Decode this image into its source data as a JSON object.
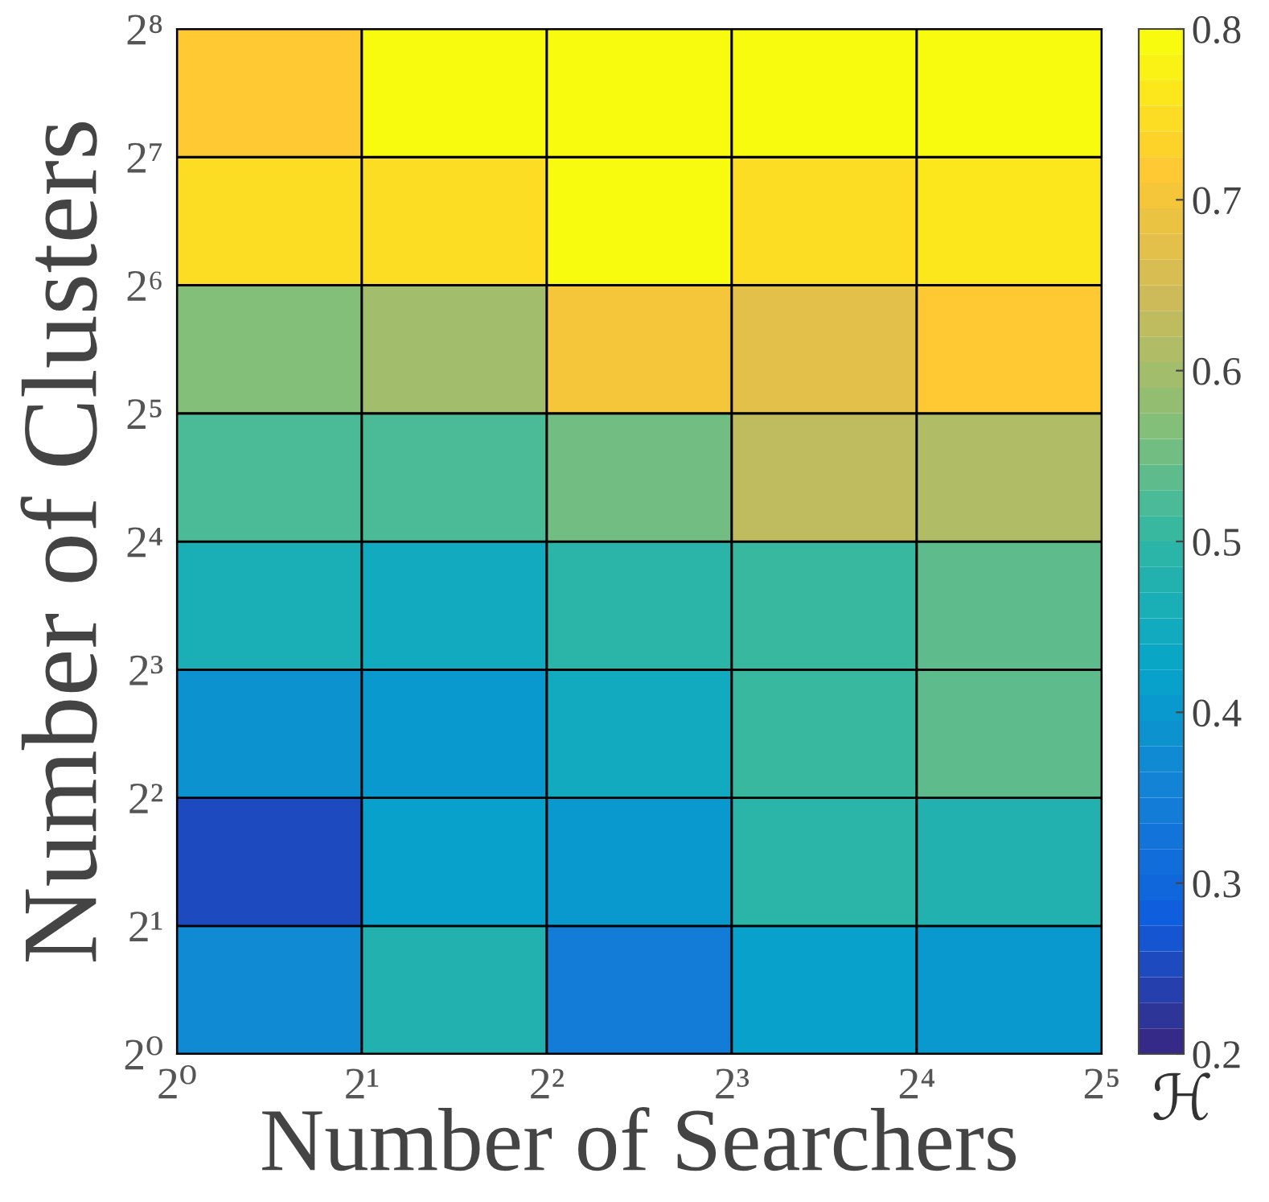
{
  "chart_data": {
    "type": "heatmap",
    "xlabel": "Number of Searchers",
    "ylabel": "Number of Clusters",
    "clabel": "ℋ",
    "x": [
      1.414,
      2.828,
      5.657,
      11.31,
      22.63
    ],
    "y": [
      1.414,
      2.828,
      5.657,
      11.31,
      22.63,
      45.25,
      90.51,
      181.0
    ],
    "log": "xy",
    "xlim": [
      1,
      32
    ],
    "ylim": [
      1,
      256
    ],
    "xticks": [
      {
        "value": 1,
        "label": "2⁰"
      },
      {
        "value": 2,
        "label": "2¹"
      },
      {
        "value": 4,
        "label": "2²"
      },
      {
        "value": 8,
        "label": "2³"
      },
      {
        "value": 16,
        "label": "2⁴"
      },
      {
        "value": 32,
        "label": "2⁵"
      }
    ],
    "yticks": [
      {
        "value": 1,
        "label": "2⁰"
      },
      {
        "value": 2,
        "label": "2¹"
      },
      {
        "value": 4,
        "label": "2²"
      },
      {
        "value": 8,
        "label": "2³"
      },
      {
        "value": 16,
        "label": "2⁴"
      },
      {
        "value": 32,
        "label": "2⁵"
      },
      {
        "value": 64,
        "label": "2⁶"
      },
      {
        "value": 128,
        "label": "2⁷"
      },
      {
        "value": 256,
        "label": "2⁸"
      }
    ],
    "cells": [
      [
        0.38,
        0.48,
        0.34,
        0.42,
        0.41
      ],
      [
        0.25,
        0.42,
        0.41,
        0.49,
        0.48
      ],
      [
        0.39,
        0.41,
        0.45,
        0.51,
        0.54
      ],
      [
        0.46,
        0.455,
        0.5,
        0.51,
        0.54
      ],
      [
        0.52,
        0.53,
        0.55,
        0.63,
        0.62
      ],
      [
        0.56,
        0.6,
        0.7,
        0.68,
        0.72
      ],
      [
        0.74,
        0.74,
        0.8,
        0.75,
        0.76
      ],
      [
        0.72,
        0.79,
        0.8,
        0.79,
        0.8
      ]
    ],
    "clim": [
      0.2,
      0.8
    ],
    "cticks": [
      0.2,
      0.3,
      0.4,
      0.5,
      0.6,
      0.7,
      0.8
    ],
    "grid": false
  }
}
